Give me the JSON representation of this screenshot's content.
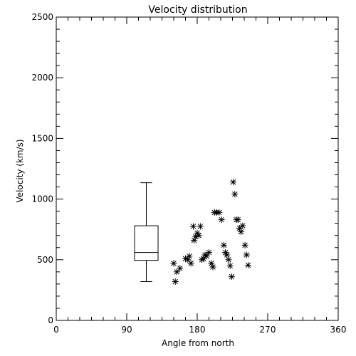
{
  "chart_data": {
    "type": "scatter",
    "title": "Velocity distribution",
    "xlabel": "Angle from north",
    "ylabel": "Velocity (km/s)",
    "xlim": [
      0,
      360
    ],
    "ylim": [
      0,
      2500
    ],
    "xticks": [
      0,
      90,
      180,
      270,
      360
    ],
    "yticks": [
      0,
      500,
      1000,
      1500,
      2000,
      2500
    ],
    "grid": false,
    "marker": "asterisk",
    "color": "#000000",
    "boxplot": {
      "x_center": 115,
      "x_width": 30,
      "whisker_low": 320,
      "q1": 495,
      "median": 560,
      "q3": 780,
      "whisker_high": 1135
    },
    "points": [
      [
        150,
        470
      ],
      [
        152,
        320
      ],
      [
        154,
        400
      ],
      [
        158,
        430
      ],
      [
        165,
        510
      ],
      [
        168,
        500
      ],
      [
        170,
        530
      ],
      [
        172,
        470
      ],
      [
        175,
        775
      ],
      [
        176,
        660
      ],
      [
        178,
        690
      ],
      [
        180,
        720
      ],
      [
        182,
        700
      ],
      [
        184,
        775
      ],
      [
        186,
        500
      ],
      [
        188,
        510
      ],
      [
        190,
        540
      ],
      [
        192,
        530
      ],
      [
        195,
        560
      ],
      [
        198,
        470
      ],
      [
        200,
        440
      ],
      [
        202,
        890
      ],
      [
        205,
        890
      ],
      [
        208,
        890
      ],
      [
        211,
        830
      ],
      [
        214,
        620
      ],
      [
        216,
        560
      ],
      [
        218,
        540
      ],
      [
        220,
        500
      ],
      [
        222,
        450
      ],
      [
        224,
        360
      ],
      [
        226,
        1140
      ],
      [
        228,
        1040
      ],
      [
        230,
        830
      ],
      [
        232,
        830
      ],
      [
        234,
        760
      ],
      [
        236,
        730
      ],
      [
        238,
        780
      ],
      [
        241,
        620
      ],
      [
        243,
        540
      ],
      [
        245,
        455
      ]
    ]
  }
}
